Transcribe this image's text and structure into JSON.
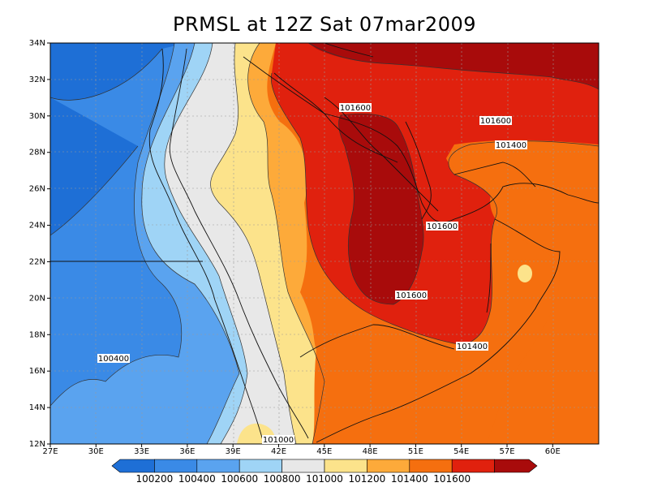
{
  "title": "PRMSL at 12Z Sat 07mar2009",
  "map": {
    "x_ticks": [
      "27E",
      "30E",
      "33E",
      "36E",
      "39E",
      "42E",
      "45E",
      "48E",
      "51E",
      "54E",
      "57E",
      "60E"
    ],
    "y_ticks": [
      "12N",
      "14N",
      "16N",
      "18N",
      "20N",
      "22N",
      "24N",
      "26N",
      "28N",
      "30N",
      "32N",
      "34N"
    ],
    "contour_labels": [
      {
        "text": "101600"
      },
      {
        "text": "101600"
      },
      {
        "text": "101400"
      },
      {
        "text": "101600"
      },
      {
        "text": "101600"
      },
      {
        "text": "101400"
      },
      {
        "text": "100400"
      },
      {
        "text": "101000"
      }
    ]
  },
  "colorbar": {
    "colors": [
      "#1e6fd6",
      "#3a8ae6",
      "#5aa3ef",
      "#9fd4f6",
      "#e8e8e8",
      "#fce38b",
      "#fdaa3a",
      "#f56f0f",
      "#e0210e",
      "#a80b0b"
    ],
    "labels": [
      "100200",
      "100400",
      "100600",
      "100800",
      "101000",
      "101200",
      "101400",
      "101600"
    ]
  }
}
